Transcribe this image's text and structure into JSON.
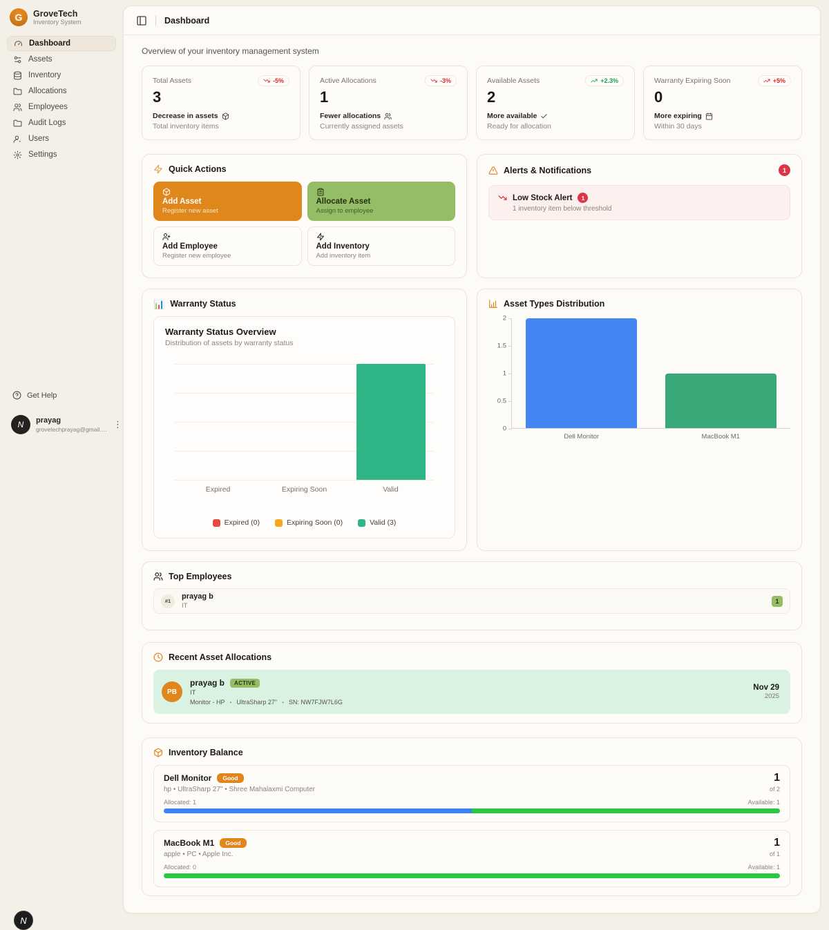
{
  "brand": {
    "name": "GroveTech",
    "subtitle": "Inventory System",
    "logo_letter": "G"
  },
  "sidebar": {
    "items": [
      {
        "label": "Dashboard",
        "icon": "gauge-icon",
        "active": true
      },
      {
        "label": "Assets",
        "icon": "sliders-icon",
        "active": false
      },
      {
        "label": "Inventory",
        "icon": "database-icon",
        "active": false
      },
      {
        "label": "Allocations",
        "icon": "folder-icon",
        "active": false
      },
      {
        "label": "Employees",
        "icon": "users-icon",
        "active": false
      },
      {
        "label": "Audit Logs",
        "icon": "folder-icon",
        "active": false
      },
      {
        "label": "Users",
        "icon": "user-icon",
        "active": false
      },
      {
        "label": "Settings",
        "icon": "gear-icon",
        "active": false
      }
    ],
    "get_help": "Get Help",
    "user": {
      "name": "prayag",
      "email": "grovetechprayag@gmail.com",
      "avatar_letter": "N"
    },
    "dev_badge_letter": "N"
  },
  "header": {
    "title": "Dashboard"
  },
  "overview_text": "Overview of your inventory management system",
  "stat_cards": [
    {
      "label": "Total Assets",
      "badge": "-5%",
      "trend": "down",
      "value": "3",
      "subtitle": "Decrease in assets",
      "subtitle_icon": "package-icon",
      "description": "Total inventory items"
    },
    {
      "label": "Active Allocations",
      "badge": "-3%",
      "trend": "down",
      "value": "1",
      "subtitle": "Fewer allocations",
      "subtitle_icon": "users-icon",
      "description": "Currently assigned assets"
    },
    {
      "label": "Available Assets",
      "badge": "+2.3%",
      "trend": "up",
      "value": "2",
      "subtitle": "More available",
      "subtitle_icon": "check-icon",
      "description": "Ready for allocation"
    },
    {
      "label": "Warranty Expiring Soon",
      "badge": "+5%",
      "trend": "up",
      "value": "0",
      "subtitle": "More expiring",
      "subtitle_icon": "calendar-icon",
      "description": "Within 30 days"
    }
  ],
  "quick_actions": {
    "title": "Quick Actions",
    "actions": [
      {
        "title": "Add Asset",
        "subtitle": "Register new asset",
        "style": "orange",
        "icon": "package-icon"
      },
      {
        "title": "Allocate Asset",
        "subtitle": "Assign to employee",
        "style": "green",
        "icon": "clipboard-icon"
      },
      {
        "title": "Add Employee",
        "subtitle": "Register new employee",
        "style": "plain",
        "icon": "user-plus-icon"
      },
      {
        "title": "Add Inventory",
        "subtitle": "Add inventory item",
        "style": "plain",
        "icon": "zap-icon"
      }
    ]
  },
  "alerts": {
    "title": "Alerts & Notifications",
    "count": "1",
    "items": [
      {
        "title": "Low Stock Alert",
        "badge": "1",
        "description": "1 inventory item below threshold"
      }
    ]
  },
  "warranty_section_title": "Warranty Status",
  "asset_types_section_title": "Asset Types Distribution",
  "chart_data": [
    {
      "type": "bar",
      "title": "Warranty Status Overview",
      "subtitle": "Distribution of assets by warranty status",
      "categories": [
        "Expired",
        "Expiring Soon",
        "Valid"
      ],
      "values": [
        0,
        0,
        3
      ],
      "colors": [
        "#e6493f",
        "#f5a81c",
        "#2fb586"
      ],
      "ylim": [
        0,
        3
      ],
      "grid": true,
      "legend_position": "bottom",
      "legend": [
        {
          "label": "Expired (0)",
          "color": "#e6493f"
        },
        {
          "label": "Expiring Soon (0)",
          "color": "#f5a81c"
        },
        {
          "label": "Valid (3)",
          "color": "#2fb586"
        }
      ]
    },
    {
      "type": "bar",
      "title": "Asset Types Distribution",
      "categories": [
        "Dell Monitor",
        "MacBook M1"
      ],
      "values": [
        2,
        1
      ],
      "colors": [
        "#4486f2",
        "#37a876"
      ],
      "ylim": [
        0,
        2
      ],
      "yticks": [
        "2",
        "1.5",
        "1",
        "0.5",
        "0"
      ],
      "grid": false
    }
  ],
  "top_employees": {
    "title": "Top Employees",
    "rows": [
      {
        "rank": "#1",
        "name": "prayag b",
        "department": "IT",
        "count": "1"
      }
    ]
  },
  "recent_allocations": {
    "title": "Recent Asset Allocations",
    "rows": [
      {
        "avatar": "PB",
        "name": "prayag b",
        "status": "ACTIVE",
        "department": "IT",
        "asset": "Monitor - HP",
        "model": "UltraSharp 27\"",
        "serial": "SN:  NW7FJW7L6G",
        "date": "Nov 29",
        "year": "2025"
      }
    ]
  },
  "inventory_balance": {
    "title": "Inventory Balance",
    "items": [
      {
        "name": "Dell Monitor",
        "status": "Good",
        "description": "hp • UltraSharp 27\" • Shree Mahalaxmi Computer",
        "allocated_label": "Allocated: 1",
        "available_label": "Available: 1",
        "total": "1",
        "of": "of 2",
        "allocated_pct": 50,
        "available_pct": 50
      },
      {
        "name": "MacBook M1",
        "status": "Good",
        "description": "apple • PC • Apple Inc.",
        "allocated_label": "Allocated: 0",
        "available_label": "Available: 1",
        "total": "1",
        "of": "of 1",
        "allocated_pct": 0,
        "available_pct": 100
      }
    ]
  },
  "theme": {
    "accent_orange": "#e0861c",
    "action_green": "#95bd65",
    "negative_red": "#dc2626",
    "positive_green": "#16a34a",
    "progress_allocated": "#3b82f6",
    "progress_available": "#28c840",
    "alloc_row_bg": "#d9f2e2"
  }
}
